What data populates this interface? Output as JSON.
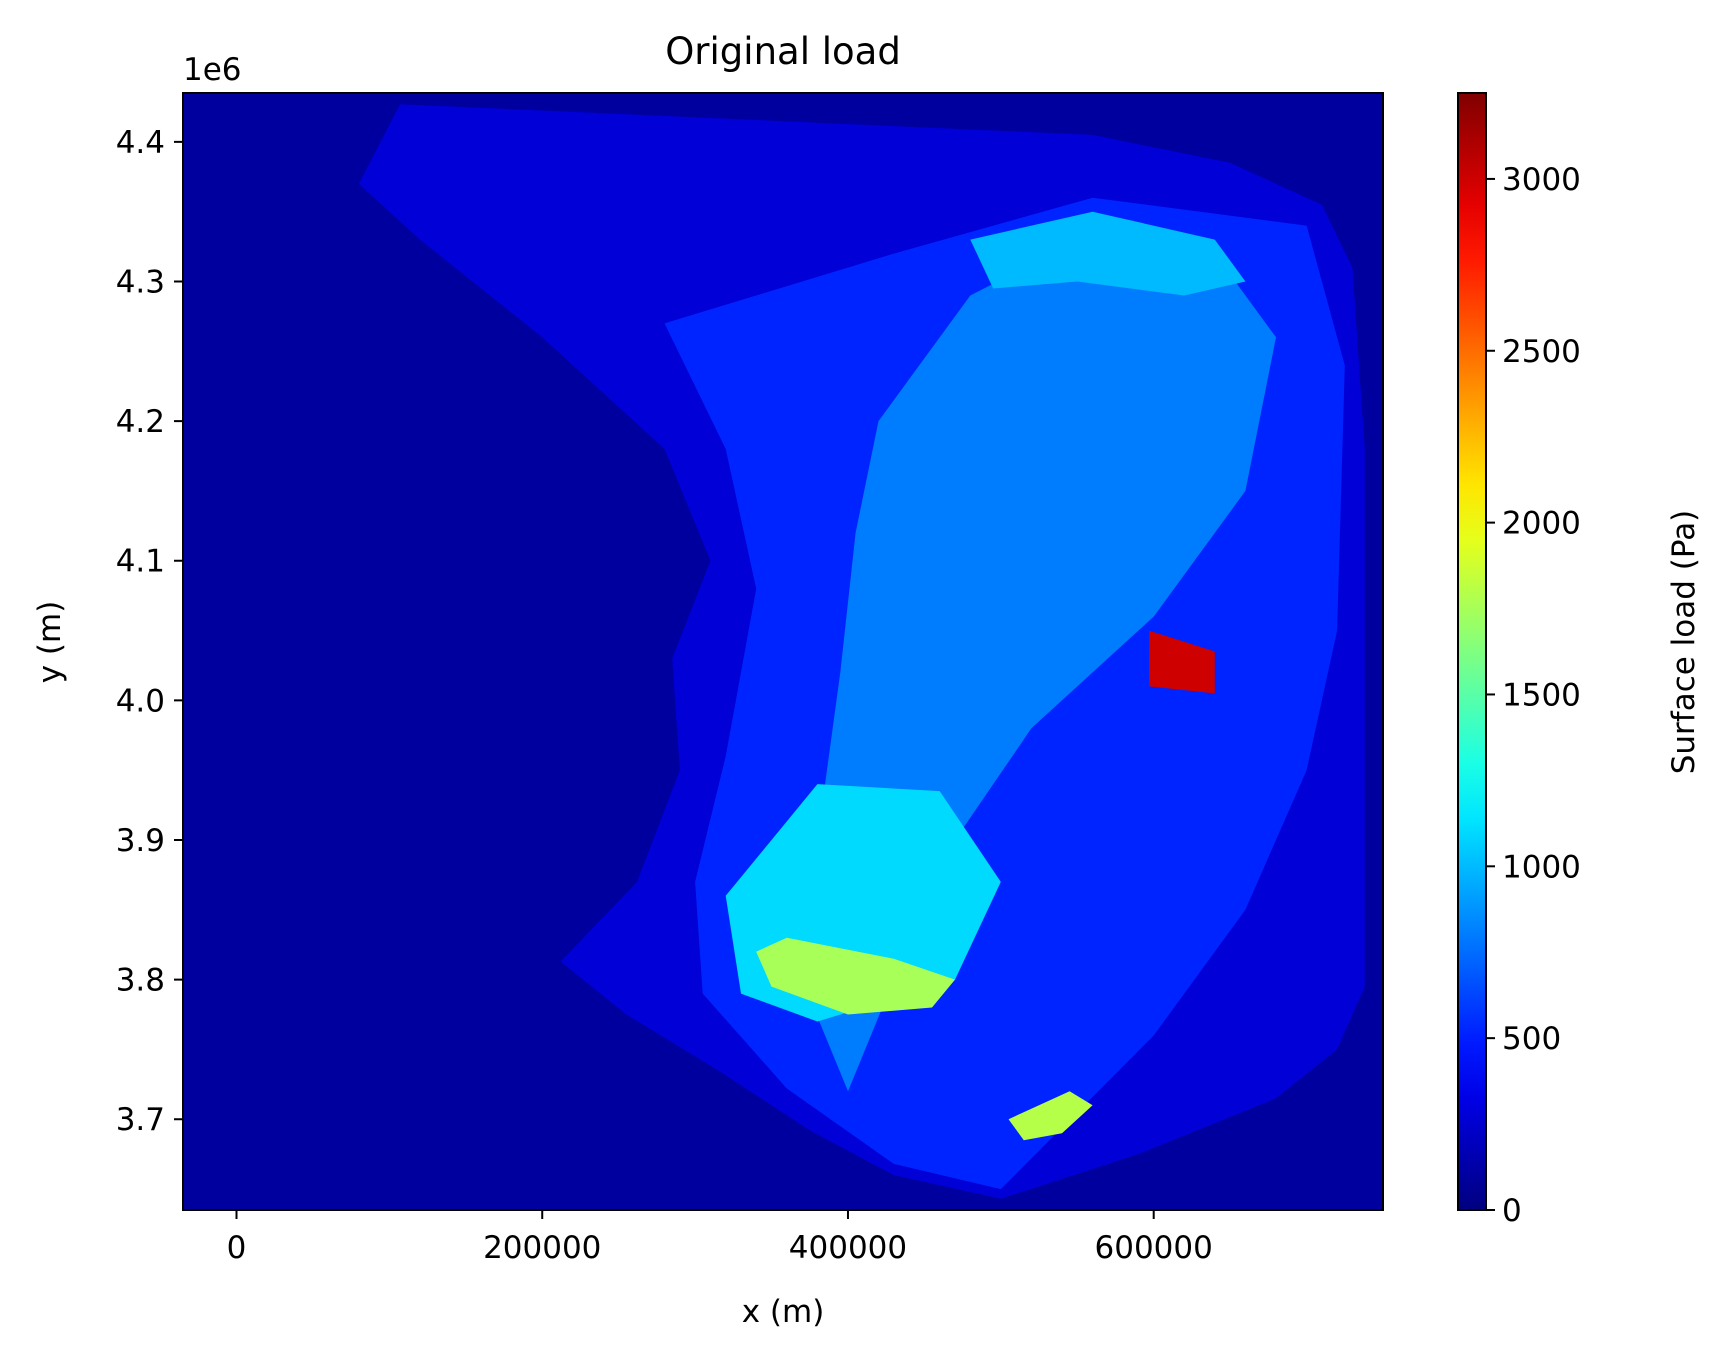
{
  "chart_data": {
    "type": "heatmap",
    "title": "Original load",
    "xlabel": "x (m)",
    "ylabel": "y (m)",
    "y_offset_label": "1e6",
    "xlim": [
      -35000,
      750000
    ],
    "ylim": [
      3.635,
      4.435
    ],
    "x_ticks": [
      0,
      200000,
      400000,
      600000
    ],
    "x_tick_labels": [
      "0",
      "200000",
      "400000",
      "600000"
    ],
    "y_ticks": [
      3.7,
      3.8,
      3.9,
      4.0,
      4.1,
      4.2,
      4.3,
      4.4
    ],
    "y_tick_labels": [
      "3.7",
      "3.8",
      "3.9",
      "4.0",
      "4.1",
      "4.2",
      "4.3",
      "4.4"
    ],
    "colormap": "jet",
    "colorbar": {
      "label": "Surface load (Pa)",
      "range": [
        0,
        3250
      ],
      "ticks": [
        0,
        500,
        1000,
        1500,
        2000,
        2500,
        3000
      ],
      "tick_labels": [
        "0",
        "500",
        "1000",
        "1500",
        "2000",
        "2500",
        "3000"
      ]
    },
    "background_value": 100,
    "regions": [
      {
        "name": "outer-domain",
        "value": 280,
        "polygon": [
          [
            107000,
            4.427
          ],
          [
            560000,
            4.405
          ],
          [
            650000,
            4.385
          ],
          [
            710000,
            4.355
          ],
          [
            730000,
            4.31
          ],
          [
            738000,
            4.18
          ],
          [
            738000,
            3.795
          ],
          [
            720000,
            3.75
          ],
          [
            680000,
            3.715
          ],
          [
            590000,
            3.675
          ],
          [
            500000,
            3.643
          ],
          [
            430000,
            3.66
          ],
          [
            375000,
            3.692
          ],
          [
            315000,
            3.735
          ],
          [
            255000,
            3.775
          ],
          [
            212000,
            3.813
          ],
          [
            262000,
            3.87
          ],
          [
            290000,
            3.95
          ],
          [
            285000,
            4.03
          ],
          [
            310000,
            4.1
          ],
          [
            280000,
            4.18
          ],
          [
            200000,
            4.26
          ],
          [
            120000,
            4.33
          ],
          [
            80000,
            4.37
          ]
        ]
      },
      {
        "name": "central-band",
        "value": 520,
        "polygon": [
          [
            280000,
            4.27
          ],
          [
            430000,
            4.32
          ],
          [
            560000,
            4.36
          ],
          [
            700000,
            4.34
          ],
          [
            725000,
            4.24
          ],
          [
            720000,
            4.05
          ],
          [
            700000,
            3.95
          ],
          [
            660000,
            3.85
          ],
          [
            600000,
            3.76
          ],
          [
            500000,
            3.65
          ],
          [
            430000,
            3.668
          ],
          [
            360000,
            3.722
          ],
          [
            305000,
            3.79
          ],
          [
            300000,
            3.87
          ],
          [
            320000,
            3.96
          ],
          [
            340000,
            4.08
          ],
          [
            320000,
            4.18
          ]
        ]
      },
      {
        "name": "core-orange",
        "value": 800,
        "polygon": [
          [
            420000,
            4.2
          ],
          [
            480000,
            4.29
          ],
          [
            560000,
            4.335
          ],
          [
            640000,
            4.32
          ],
          [
            680000,
            4.26
          ],
          [
            660000,
            4.15
          ],
          [
            600000,
            4.06
          ],
          [
            520000,
            3.98
          ],
          [
            470000,
            3.9
          ],
          [
            430000,
            3.8
          ],
          [
            400000,
            3.72
          ],
          [
            370000,
            3.8
          ],
          [
            380000,
            3.9
          ],
          [
            395000,
            4.02
          ],
          [
            405000,
            4.12
          ]
        ]
      },
      {
        "name": "north-yellow",
        "value": 1000,
        "polygon": [
          [
            480000,
            4.33
          ],
          [
            560000,
            4.35
          ],
          [
            640000,
            4.33
          ],
          [
            660000,
            4.3
          ],
          [
            620000,
            4.29
          ],
          [
            550000,
            4.3
          ],
          [
            495000,
            4.295
          ]
        ]
      },
      {
        "name": "southwest-yellow",
        "value": 1100,
        "polygon": [
          [
            320000,
            3.86
          ],
          [
            380000,
            3.94
          ],
          [
            460000,
            3.935
          ],
          [
            500000,
            3.87
          ],
          [
            470000,
            3.8
          ],
          [
            380000,
            3.77
          ],
          [
            330000,
            3.79
          ]
        ]
      },
      {
        "name": "southwest-cyan",
        "value": 1750,
        "polygon": [
          [
            340000,
            3.82
          ],
          [
            360000,
            3.83
          ],
          [
            430000,
            3.815
          ],
          [
            470000,
            3.8
          ],
          [
            455000,
            3.78
          ],
          [
            400000,
            3.775
          ],
          [
            350000,
            3.795
          ]
        ]
      },
      {
        "name": "south-cyan",
        "value": 1800,
        "polygon": [
          [
            505000,
            3.7
          ],
          [
            545000,
            3.72
          ],
          [
            560000,
            3.71
          ],
          [
            540000,
            3.69
          ],
          [
            515000,
            3.685
          ]
        ]
      },
      {
        "name": "east-blue-spot",
        "value": 3000,
        "polygon": [
          [
            597000,
            4.05
          ],
          [
            640000,
            4.035
          ],
          [
            640000,
            4.005
          ],
          [
            597000,
            4.01
          ]
        ]
      }
    ]
  }
}
